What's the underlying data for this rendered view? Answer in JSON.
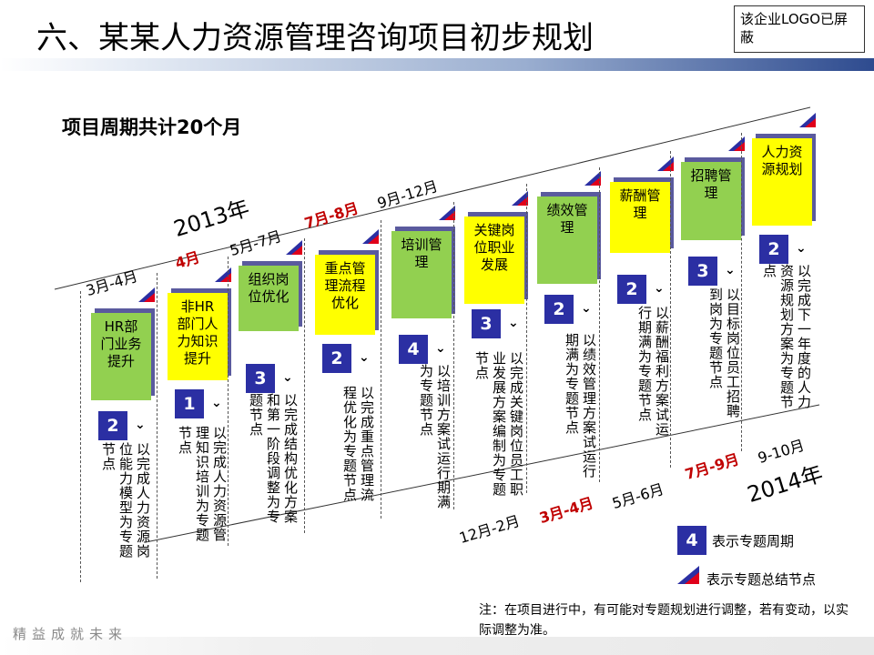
{
  "title": "六、某某人力资源管理咨询项目初步规划",
  "logo_notice": "该企业LOGO已屏蔽",
  "duration": "项目周期共计20个月",
  "years": {
    "y2013": "2013年",
    "y2014": "2014年"
  },
  "dates_2013": [
    {
      "text": "3月-4月",
      "highlight": false
    },
    {
      "text": "4月",
      "highlight": true
    },
    {
      "text": "5月-7月",
      "highlight": false
    },
    {
      "text": "7月-8月",
      "highlight": true
    },
    {
      "text": "9月-12月",
      "highlight": false
    }
  ],
  "dates_2014": [
    {
      "text": "12月-2月",
      "highlight": false
    },
    {
      "text": "3月-4月",
      "highlight": true
    },
    {
      "text": "5月-6月",
      "highlight": false
    },
    {
      "text": "7月-9月",
      "highlight": true
    },
    {
      "text": "9-10月",
      "highlight": false
    }
  ],
  "topics": [
    {
      "name": "HR部门业务提升",
      "color": "green",
      "months": "2",
      "description": "以完成人力资源岗位能力模型为专题节点"
    },
    {
      "name": "非HR部门人力知识提升",
      "color": "yellow",
      "months": "1",
      "description": "以完成人力资源管理知识培训为专题节点"
    },
    {
      "name": "组织岗位优化",
      "color": "green",
      "months": "3",
      "description": "以完成结构优化方案和第一阶段调整为专题节点"
    },
    {
      "name": "重点管理流程优化",
      "color": "yellow",
      "months": "2",
      "description": "以完成重点管理流程优化为专题节点"
    },
    {
      "name": "培训管理",
      "color": "green",
      "months": "4",
      "description": "以培训方案试运行期满为专题节点"
    },
    {
      "name": "关键岗位职业发展",
      "color": "yellow",
      "months": "3",
      "description": "以完成关键岗位员工职业发展方案编制为专题节点"
    },
    {
      "name": "绩效管理",
      "color": "green",
      "months": "2",
      "description": "以绩效管理方案试运行期满为专题节点"
    },
    {
      "name": "薪酬管理",
      "color": "yellow",
      "months": "2",
      "description": "以薪酬福利方案试运行期满为专题节点"
    },
    {
      "name": "招聘管理",
      "color": "green",
      "months": "3",
      "description": "以目标岗位员工招聘到岗为专题节点"
    },
    {
      "name": "人力资源规划",
      "color": "yellow",
      "months": "2",
      "description": "以完成下一年度的人力资源规划方案为专题节点"
    }
  ],
  "legend": {
    "num_sample": "4",
    "num_label": "表示专题周期",
    "mark_label": "表示专题总结节点"
  },
  "note": "注：在项目进行中，有可能对专题规划进行调整，若有变动，以实际调整为准。",
  "footer": "精益成就未来",
  "colors": {
    "green": "#92d050",
    "yellow": "#ffff00",
    "blue": "#2b2fa3",
    "red": "#c00000"
  }
}
